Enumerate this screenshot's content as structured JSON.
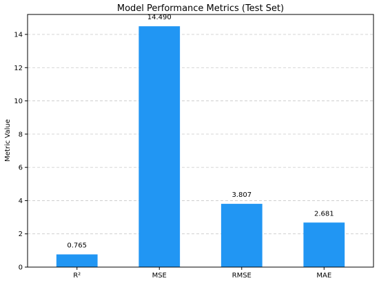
{
  "chart_data": {
    "type": "bar",
    "title": "Model Performance Metrics (Test Set)",
    "xlabel": "",
    "ylabel": "Metric Value",
    "categories": [
      "R²",
      "MSE",
      "RMSE",
      "MAE"
    ],
    "values": [
      0.765,
      14.49,
      3.807,
      2.681
    ],
    "value_labels": [
      "0.765",
      "14.490",
      "3.807",
      "2.681"
    ],
    "ylim": [
      0,
      15.2
    ],
    "yticks": [
      0,
      2,
      4,
      6,
      8,
      10,
      12,
      14
    ],
    "ytick_labels": [
      "0",
      "2",
      "4",
      "6",
      "8",
      "10",
      "12",
      "14"
    ],
    "grid": "y-axis dashed",
    "bar_color": "#2196f3"
  }
}
